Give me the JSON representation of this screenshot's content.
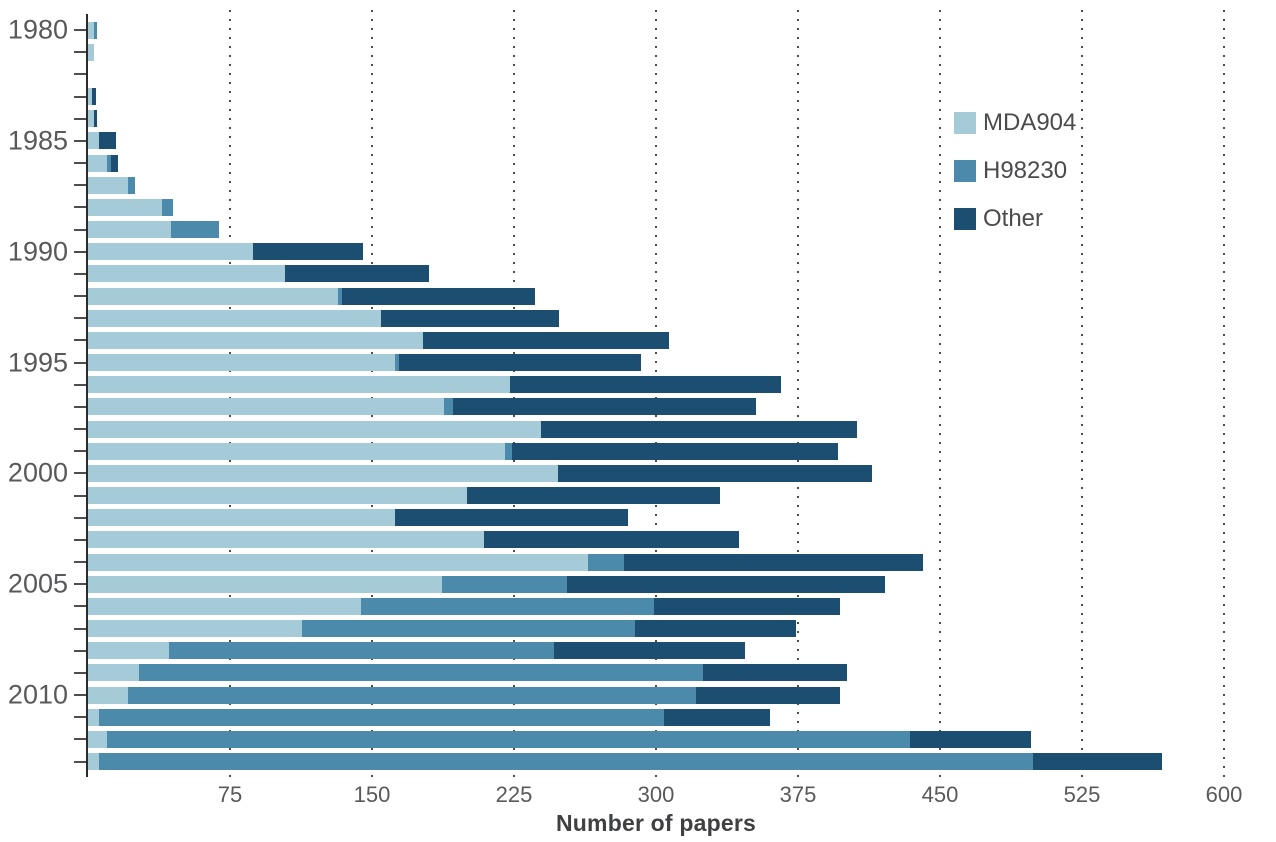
{
  "chart_data": {
    "type": "bar",
    "orientation": "horizontal",
    "stacked": true,
    "title": "",
    "xlabel": "Number of papers",
    "ylabel": "",
    "xlim": [
      0,
      600
    ],
    "xticks": [
      75,
      150,
      225,
      300,
      375,
      450,
      525,
      600
    ],
    "ytick_labels": [
      1980,
      1985,
      1990,
      1995,
      2000,
      2005,
      2010
    ],
    "grid": "vertical-dotted",
    "legend_position": "upper-right",
    "categories": [
      1980,
      1981,
      1982,
      1983,
      1984,
      1985,
      1986,
      1987,
      1988,
      1989,
      1990,
      1991,
      1992,
      1993,
      1994,
      1995,
      1996,
      1997,
      1998,
      1999,
      2000,
      2001,
      2002,
      2003,
      2004,
      2005,
      2006,
      2007,
      2008,
      2009,
      2010,
      2011,
      2012,
      2013
    ],
    "series": [
      {
        "name": "MDA904",
        "color": "#a5cbd9",
        "values": [
          3,
          3,
          0,
          2,
          3,
          6,
          10,
          21,
          39,
          44,
          87,
          104,
          132,
          155,
          177,
          162,
          223,
          188,
          239,
          220,
          248,
          200,
          162,
          209,
          264,
          187,
          144,
          113,
          43,
          27,
          21,
          6,
          10,
          6
        ]
      },
      {
        "name": "H98230",
        "color": "#4b8aab",
        "values": [
          2,
          0,
          0,
          0,
          0,
          0,
          2,
          4,
          6,
          25,
          0,
          0,
          2,
          0,
          0,
          2,
          0,
          5,
          0,
          4,
          0,
          0,
          0,
          0,
          19,
          66,
          155,
          176,
          203,
          298,
          300,
          298,
          424,
          493
        ]
      },
      {
        "name": "Other",
        "color": "#1b4e70",
        "values": [
          0,
          0,
          0,
          2,
          2,
          9,
          4,
          0,
          0,
          0,
          58,
          76,
          102,
          94,
          130,
          128,
          143,
          160,
          167,
          172,
          166,
          134,
          123,
          135,
          158,
          168,
          98,
          85,
          101,
          76,
          76,
          56,
          64,
          68
        ]
      }
    ]
  },
  "colors": {
    "axis_line": "#2b2b2b",
    "tick": "#4d4d4d",
    "grid_dot": "#4d4d4d",
    "tick_label": "#58595b",
    "axis_title": "#3f4042",
    "legend_text": "#4a4b4d",
    "background": "#ffffff"
  }
}
